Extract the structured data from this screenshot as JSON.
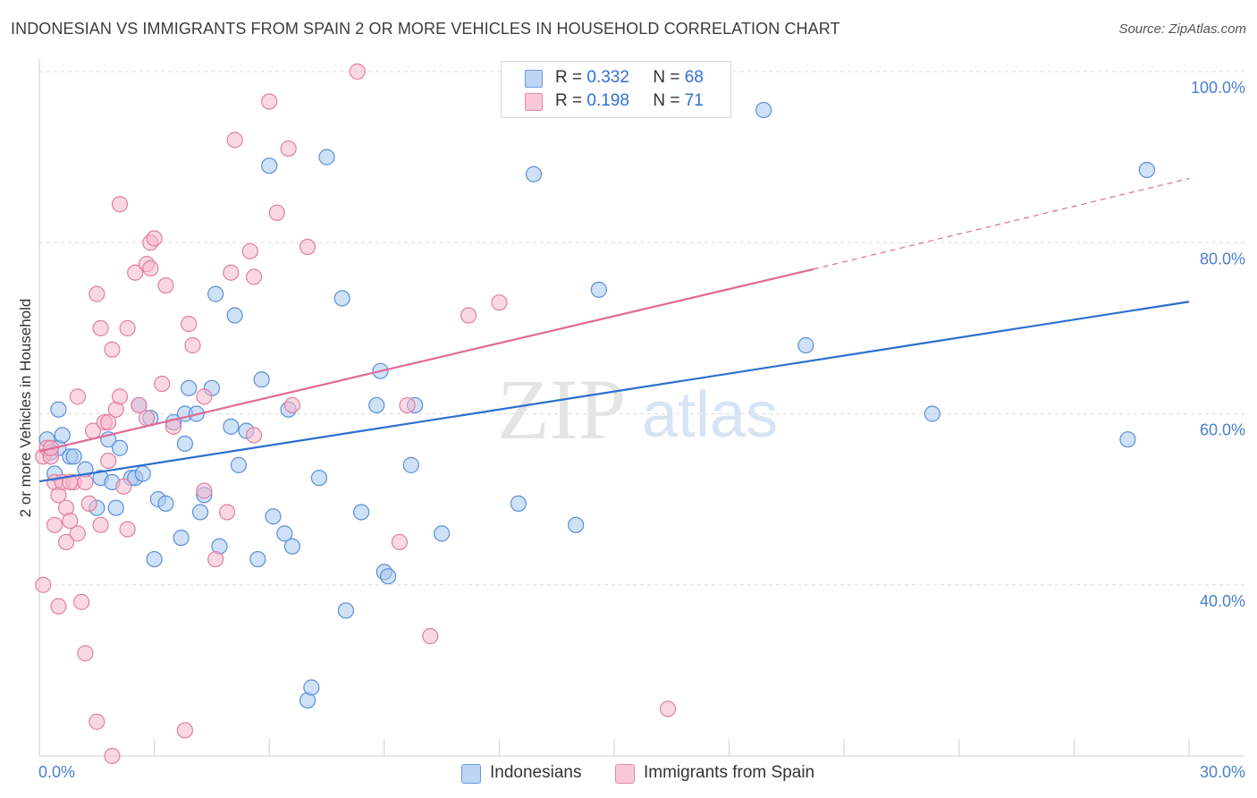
{
  "title": "INDONESIAN VS IMMIGRANTS FROM SPAIN 2 OR MORE VEHICLES IN HOUSEHOLD CORRELATION CHART",
  "source": "Source: ZipAtlas.com",
  "watermark": {
    "zip": "ZIP",
    "atlas": "atlas"
  },
  "legend": {
    "r_label": "R =",
    "n_label": "N =",
    "rows": [
      {
        "r": "0.332",
        "n": "68"
      },
      {
        "r": "0.198",
        "n": "71"
      }
    ]
  },
  "colors": {
    "indonesians_fill": "#a8c8f0",
    "indonesians_stroke": "#5b8fd6",
    "indonesians_line": "#2a6fcf",
    "spain_fill": "#f6b8cc",
    "spain_stroke": "#e07fa0",
    "spain_line": "#e06a96",
    "tick_label": "#4a7fd0",
    "grid": "#dcdcdc"
  },
  "chart_data": {
    "type": "scatter",
    "title": "INDONESIAN VS IMMIGRANTS FROM SPAIN 2 OR MORE VEHICLES IN HOUSEHOLD CORRELATION CHART",
    "xlabel": "",
    "ylabel": "2 or more Vehicles in Household",
    "xlim": [
      0,
      30
    ],
    "ylim": [
      20,
      100
    ],
    "x_tick_labels": [
      "0.0%",
      "30.0%"
    ],
    "y_ticks": [
      40,
      60,
      80,
      100
    ],
    "y_tick_labels": [
      "40.0%",
      "60.0%",
      "80.0%",
      "100.0%"
    ],
    "grid": true,
    "legend_position": "top-center",
    "series": [
      {
        "name": "Indonesians",
        "r": 0.332,
        "n": 68,
        "trend": {
          "x": [
            0,
            30
          ],
          "y": [
            52.1,
            73.1
          ]
        },
        "points": [
          [
            0.2,
            57.0
          ],
          [
            0.3,
            55.5
          ],
          [
            0.4,
            53.0
          ],
          [
            0.5,
            60.5
          ],
          [
            0.5,
            56.0
          ],
          [
            0.6,
            57.5
          ],
          [
            0.8,
            55.0
          ],
          [
            0.9,
            55.0
          ],
          [
            1.2,
            53.5
          ],
          [
            1.5,
            49.0
          ],
          [
            1.6,
            52.5
          ],
          [
            1.8,
            57.0
          ],
          [
            1.9,
            52.0
          ],
          [
            2.0,
            49.0
          ],
          [
            2.1,
            56.0
          ],
          [
            2.4,
            52.5
          ],
          [
            2.5,
            52.5
          ],
          [
            2.6,
            61.0
          ],
          [
            2.7,
            53.0
          ],
          [
            2.9,
            59.5
          ],
          [
            3.0,
            43.0
          ],
          [
            3.1,
            50.0
          ],
          [
            3.3,
            49.5
          ],
          [
            3.5,
            59.0
          ],
          [
            3.7,
            45.5
          ],
          [
            3.8,
            60.0
          ],
          [
            3.8,
            56.5
          ],
          [
            3.9,
            63.0
          ],
          [
            4.1,
            60.0
          ],
          [
            4.2,
            48.5
          ],
          [
            4.3,
            50.5
          ],
          [
            4.5,
            63.0
          ],
          [
            4.6,
            74.0
          ],
          [
            4.7,
            44.5
          ],
          [
            5.0,
            58.5
          ],
          [
            5.1,
            71.5
          ],
          [
            5.2,
            54.0
          ],
          [
            5.4,
            58.0
          ],
          [
            5.7,
            43.0
          ],
          [
            5.8,
            64.0
          ],
          [
            6.0,
            89.0
          ],
          [
            6.1,
            48.0
          ],
          [
            6.4,
            46.0
          ],
          [
            6.5,
            60.5
          ],
          [
            6.6,
            44.5
          ],
          [
            7.0,
            26.5
          ],
          [
            7.1,
            28.0
          ],
          [
            7.3,
            52.5
          ],
          [
            7.5,
            90.0
          ],
          [
            7.9,
            73.5
          ],
          [
            8.0,
            37.0
          ],
          [
            8.4,
            48.5
          ],
          [
            8.8,
            61.0
          ],
          [
            8.9,
            65.0
          ],
          [
            9.0,
            41.5
          ],
          [
            9.1,
            41.0
          ],
          [
            9.7,
            54.0
          ],
          [
            9.8,
            61.0
          ],
          [
            10.5,
            46.0
          ],
          [
            12.5,
            49.5
          ],
          [
            12.9,
            88.0
          ],
          [
            14.0,
            47.0
          ],
          [
            14.6,
            74.5
          ],
          [
            18.9,
            95.5
          ],
          [
            20.0,
            68.0
          ],
          [
            23.3,
            60.0
          ],
          [
            28.4,
            57.0
          ],
          [
            28.9,
            88.5
          ]
        ]
      },
      {
        "name": "Immigrants from Spain",
        "r": 0.198,
        "n": 71,
        "trend": {
          "x": [
            0,
            20.2
          ],
          "y": [
            55.6,
            76.9
          ]
        },
        "trend_dashed": {
          "x": [
            20.2,
            30
          ],
          "y": [
            76.9,
            87.5
          ]
        },
        "points": [
          [
            0.1,
            55.0
          ],
          [
            0.1,
            40.0
          ],
          [
            0.2,
            56.0
          ],
          [
            0.3,
            55.0
          ],
          [
            0.4,
            47.0
          ],
          [
            0.4,
            52.0
          ],
          [
            0.5,
            50.5
          ],
          [
            0.5,
            37.5
          ],
          [
            0.6,
            52.0
          ],
          [
            0.7,
            49.0
          ],
          [
            0.7,
            45.0
          ],
          [
            0.8,
            47.5
          ],
          [
            0.9,
            52.0
          ],
          [
            1.0,
            62.0
          ],
          [
            1.0,
            46.0
          ],
          [
            1.1,
            38.0
          ],
          [
            1.2,
            52.0
          ],
          [
            1.2,
            32.0
          ],
          [
            1.3,
            49.5
          ],
          [
            1.4,
            58.0
          ],
          [
            1.5,
            74.0
          ],
          [
            1.5,
            24.0
          ],
          [
            1.6,
            47.0
          ],
          [
            1.6,
            70.0
          ],
          [
            1.7,
            59.0
          ],
          [
            1.8,
            54.5
          ],
          [
            1.9,
            67.5
          ],
          [
            1.9,
            20.0
          ],
          [
            2.0,
            60.5
          ],
          [
            2.1,
            62.0
          ],
          [
            2.1,
            84.5
          ],
          [
            2.2,
            51.5
          ],
          [
            2.3,
            46.5
          ],
          [
            2.3,
            70.0
          ],
          [
            2.5,
            76.5
          ],
          [
            2.6,
            61.0
          ],
          [
            2.8,
            77.5
          ],
          [
            2.9,
            77.0
          ],
          [
            2.9,
            80.0
          ],
          [
            3.0,
            80.5
          ],
          [
            3.2,
            63.5
          ],
          [
            3.3,
            75.0
          ],
          [
            3.5,
            58.5
          ],
          [
            3.8,
            23.0
          ],
          [
            3.9,
            70.5
          ],
          [
            4.0,
            68.0
          ],
          [
            4.3,
            62.0
          ],
          [
            4.3,
            51.0
          ],
          [
            4.6,
            43.0
          ],
          [
            4.9,
            48.5
          ],
          [
            5.0,
            76.5
          ],
          [
            5.1,
            92.0
          ],
          [
            5.5,
            79.0
          ],
          [
            5.6,
            57.5
          ],
          [
            5.6,
            76.0
          ],
          [
            6.0,
            96.5
          ],
          [
            6.2,
            83.5
          ],
          [
            6.5,
            91.0
          ],
          [
            6.6,
            61.0
          ],
          [
            7.0,
            79.5
          ],
          [
            8.3,
            100.0
          ],
          [
            9.4,
            45.0
          ],
          [
            9.6,
            61.0
          ],
          [
            10.2,
            34.0
          ],
          [
            11.2,
            71.5
          ],
          [
            12.0,
            73.0
          ],
          [
            16.4,
            25.5
          ],
          [
            1.8,
            59.0
          ],
          [
            2.8,
            59.5
          ],
          [
            0.8,
            52.0
          ],
          [
            0.3,
            56.0
          ]
        ]
      }
    ]
  }
}
